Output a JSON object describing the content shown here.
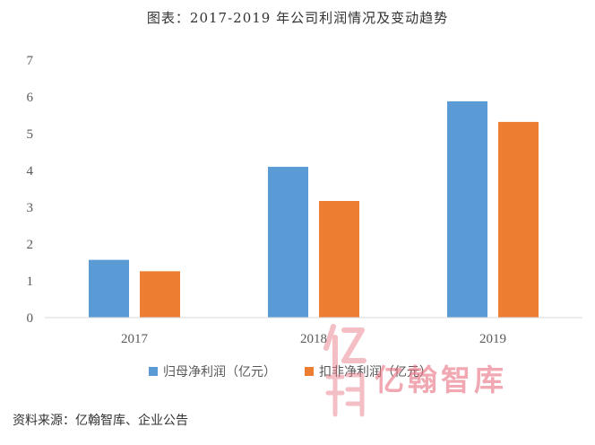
{
  "chart_data": {
    "type": "bar",
    "title": "图表：2017-2019 年公司利润情况及变动趋势",
    "categories": [
      "2017",
      "2018",
      "2019"
    ],
    "series": [
      {
        "name": "归母净利润（亿元）",
        "values": [
          1.57,
          4.1,
          5.88
        ],
        "color": "#5b9bd5"
      },
      {
        "name": "扣非净利润（亿元）",
        "values": [
          1.26,
          3.17,
          5.32
        ],
        "color": "#ed7d31"
      }
    ],
    "ylim": [
      0,
      7
    ],
    "y_ticks": [
      "0",
      "1",
      "2",
      "3",
      "4",
      "5",
      "6",
      "7"
    ],
    "grid": false,
    "legend_position": "bottom"
  },
  "source": "资料来源：亿翰智库、企业公告",
  "watermark": "亿翰智库",
  "colors": {
    "axis": "#d9d9d9",
    "watermark": "#e8707f"
  }
}
